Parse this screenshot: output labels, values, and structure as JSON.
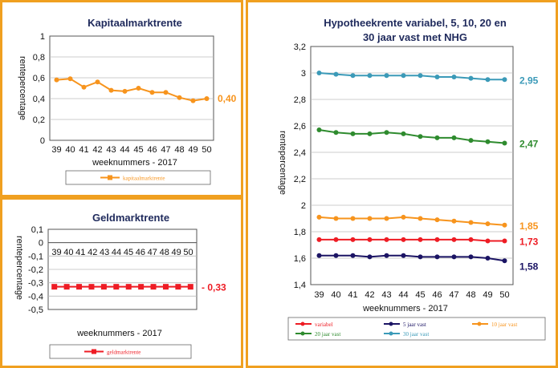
{
  "colors": {
    "frame": "#f0a020",
    "title": "#1f2a5c"
  },
  "chart_data": [
    {
      "id": "kapitaal",
      "type": "line",
      "title": "Kapitaalmarktrente",
      "xlabel": "weeknummers - 2017",
      "ylabel": "rentepercentage",
      "categories": [
        "39",
        "40",
        "41",
        "42",
        "43",
        "44",
        "45",
        "46",
        "47",
        "48",
        "49",
        "50"
      ],
      "ylim": [
        0,
        1
      ],
      "yticks": [
        "0",
        "0,2",
        "0,4",
        "0,6",
        "0,8",
        "1"
      ],
      "grid": true,
      "series": [
        {
          "name": "kapitaalmarktrente",
          "color": "#f7941d",
          "values": [
            0.58,
            0.59,
            0.51,
            0.56,
            0.48,
            0.47,
            0.5,
            0.46,
            0.46,
            0.41,
            0.38,
            0.4
          ],
          "end_label": "0,40"
        }
      ]
    },
    {
      "id": "geld",
      "type": "line",
      "title": "Geldmarktrente",
      "xlabel": "weeknummers - 2017",
      "ylabel": "rentepercentage",
      "categories": [
        "39",
        "40",
        "41",
        "42",
        "43",
        "44",
        "45",
        "46",
        "47",
        "48",
        "49",
        "50"
      ],
      "ylim": [
        -0.5,
        0.1
      ],
      "yticks": [
        "-0,5",
        "-0,4",
        "-0,3",
        "-0,2",
        "-0,1",
        "0",
        "0,1"
      ],
      "grid": true,
      "series": [
        {
          "name": "geldmarktrente",
          "color": "#ee1c24",
          "values": [
            -0.33,
            -0.33,
            -0.33,
            -0.33,
            -0.33,
            -0.33,
            -0.33,
            -0.33,
            -0.33,
            -0.33,
            -0.33,
            -0.33
          ],
          "end_label": "- 0,33"
        }
      ]
    },
    {
      "id": "hypotheek",
      "type": "line",
      "title": "Hypotheekrente variabel, 5, 10, 20 en",
      "subtitle": "30 jaar vast met NHG",
      "xlabel": "weeknummers - 2017",
      "ylabel": "rentepercentage",
      "categories": [
        "39",
        "40",
        "41",
        "42",
        "43",
        "44",
        "45",
        "46",
        "47",
        "48",
        "49",
        "50"
      ],
      "ylim": [
        1.4,
        3.2
      ],
      "yticks": [
        "1,4",
        "1,6",
        "1,8",
        "2",
        "2,2",
        "2,4",
        "2,6",
        "2,8",
        "3",
        "3,2"
      ],
      "grid": true,
      "legend": "bottom",
      "series": [
        {
          "name": "variabel",
          "color": "#ee1c24",
          "values": [
            1.74,
            1.74,
            1.74,
            1.74,
            1.74,
            1.74,
            1.74,
            1.74,
            1.74,
            1.74,
            1.73,
            1.73
          ],
          "end_label": "1,73"
        },
        {
          "name": "5 jaar vast",
          "color": "#1b1464",
          "values": [
            1.62,
            1.62,
            1.62,
            1.61,
            1.62,
            1.62,
            1.61,
            1.61,
            1.61,
            1.61,
            1.6,
            1.58
          ],
          "end_label": "1,58"
        },
        {
          "name": "10 jaar vast",
          "color": "#f7941d",
          "values": [
            1.91,
            1.9,
            1.9,
            1.9,
            1.9,
            1.91,
            1.9,
            1.89,
            1.88,
            1.87,
            1.86,
            1.85
          ],
          "end_label": "1,85"
        },
        {
          "name": "20 jaar vast",
          "color": "#2e8b2e",
          "values": [
            2.57,
            2.55,
            2.54,
            2.54,
            2.55,
            2.54,
            2.52,
            2.51,
            2.51,
            2.49,
            2.48,
            2.47
          ],
          "end_label": "2,47"
        },
        {
          "name": "30 jaar vast",
          "color": "#3b9ab8",
          "values": [
            3.0,
            2.99,
            2.98,
            2.98,
            2.98,
            2.98,
            2.98,
            2.97,
            2.97,
            2.96,
            2.95,
            2.95
          ],
          "end_label": "2,95"
        }
      ]
    }
  ]
}
